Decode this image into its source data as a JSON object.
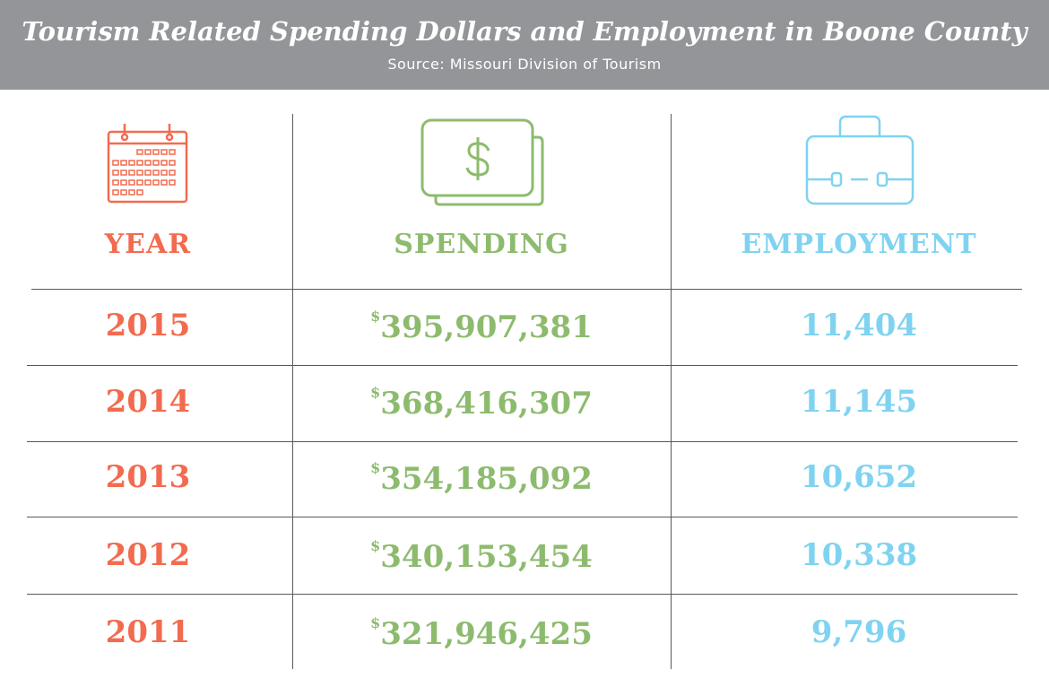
{
  "header": {
    "title": "Tourism Related Spending Dollars and Employment in Boone County",
    "source": "Source: Missouri Division of Tourism"
  },
  "table": {
    "headers": [
      "YEAR",
      "SPENDING",
      "EMPLOYMENT"
    ],
    "rows": [
      {
        "year": "2015",
        "currency": "$",
        "spending": "395,907,381",
        "employment": "11,404"
      },
      {
        "year": "2014",
        "currency": "$",
        "spending": "368,416,307",
        "employment": "11,145"
      },
      {
        "year": "2013",
        "currency": "$",
        "spending": "354,185,092",
        "employment": "10,652"
      },
      {
        "year": "2012",
        "currency": "$",
        "spending": "340,153,454",
        "employment": "10,338"
      },
      {
        "year": "2011",
        "currency": "$",
        "spending": "321,946,425",
        "employment": "9,796"
      }
    ]
  }
}
